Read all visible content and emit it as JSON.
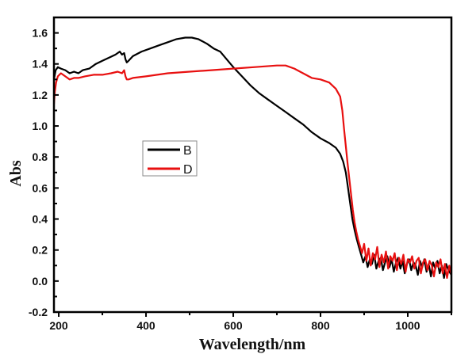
{
  "chart_data": {
    "type": "line",
    "title": "",
    "xlabel": "Wavelength/nm",
    "ylabel": "Abs",
    "xlim": [
      189,
      1100
    ],
    "ylim": [
      -0.2,
      1.7
    ],
    "x_ticks": [
      200,
      400,
      600,
      800,
      1000
    ],
    "x_tick_labels": [
      "200",
      "400",
      "600",
      "800",
      "1000"
    ],
    "x_minor_ticks": [
      300,
      500,
      700,
      900,
      1100
    ],
    "y_ticks": [
      -0.2,
      0.0,
      0.2,
      0.4,
      0.6,
      0.8,
      1.0,
      1.2,
      1.4,
      1.6
    ],
    "y_tick_labels": [
      "-0.2",
      "0.0",
      "0.2",
      "0.4",
      "0.6",
      "0.8",
      "1.0",
      "1.2",
      "1.4",
      "1.6"
    ],
    "y_minor_ticks": [
      -0.1,
      0.1,
      0.3,
      0.5,
      0.7,
      0.9,
      1.1,
      1.3,
      1.5,
      1.7
    ],
    "grid": false,
    "legend": {
      "placement": "center-left",
      "entries": [
        "B",
        "D"
      ]
    },
    "series": [
      {
        "name": "B",
        "color": "#000000",
        "x": [
          189,
          193,
          198,
          205,
          215,
          225,
          235,
          245,
          255,
          270,
          285,
          300,
          315,
          330,
          340,
          345,
          350,
          353,
          356,
          360,
          370,
          390,
          410,
          430,
          450,
          470,
          490,
          505,
          520,
          540,
          555,
          570,
          585,
          600,
          620,
          640,
          660,
          680,
          700,
          720,
          740,
          760,
          780,
          800,
          820,
          835,
          845,
          852,
          858,
          863,
          868,
          873,
          878,
          883,
          888,
          893,
          898,
          903,
          908,
          913,
          918,
          923,
          928,
          933,
          938,
          943,
          948,
          953,
          958,
          963,
          968,
          973,
          978,
          983,
          988,
          993,
          998,
          1003,
          1008,
          1013,
          1018,
          1023,
          1028,
          1033,
          1038,
          1043,
          1048,
          1053,
          1058,
          1063,
          1068,
          1073,
          1078,
          1083,
          1088,
          1093,
          1100
        ],
        "y": [
          1.3,
          1.36,
          1.38,
          1.37,
          1.36,
          1.34,
          1.35,
          1.34,
          1.36,
          1.37,
          1.4,
          1.42,
          1.44,
          1.46,
          1.48,
          1.46,
          1.47,
          1.43,
          1.41,
          1.42,
          1.45,
          1.48,
          1.5,
          1.52,
          1.54,
          1.56,
          1.57,
          1.57,
          1.56,
          1.53,
          1.5,
          1.48,
          1.43,
          1.38,
          1.32,
          1.26,
          1.21,
          1.17,
          1.13,
          1.09,
          1.05,
          1.01,
          0.96,
          0.92,
          0.89,
          0.86,
          0.82,
          0.77,
          0.7,
          0.6,
          0.5,
          0.4,
          0.33,
          0.27,
          0.22,
          0.17,
          0.12,
          0.16,
          0.09,
          0.14,
          0.11,
          0.17,
          0.08,
          0.13,
          0.15,
          0.07,
          0.12,
          0.16,
          0.09,
          0.14,
          0.06,
          0.12,
          0.15,
          0.08,
          0.13,
          0.05,
          0.11,
          0.14,
          0.07,
          0.12,
          0.1,
          0.04,
          0.13,
          0.09,
          0.14,
          0.06,
          0.11,
          0.03,
          0.12,
          0.08,
          0.13,
          0.05,
          0.1,
          0.02,
          0.11,
          0.07,
          0.04
        ]
      },
      {
        "name": "D",
        "color": "#e81010",
        "x": [
          189,
          191,
          194,
          198,
          205,
          215,
          225,
          235,
          245,
          260,
          280,
          300,
          320,
          335,
          345,
          350,
          353,
          356,
          360,
          370,
          400,
          450,
          500,
          550,
          600,
          650,
          700,
          720,
          740,
          760,
          780,
          800,
          820,
          835,
          845,
          850,
          854,
          858,
          862,
          866,
          870,
          874,
          878,
          882,
          886,
          890,
          895,
          900,
          905,
          910,
          915,
          920,
          925,
          930,
          935,
          940,
          945,
          950,
          955,
          960,
          965,
          970,
          975,
          980,
          985,
          990,
          995,
          1000,
          1005,
          1010,
          1015,
          1020,
          1025,
          1030,
          1035,
          1040,
          1045,
          1050,
          1055,
          1060,
          1065,
          1070,
          1075,
          1080,
          1085,
          1090,
          1095,
          1100
        ],
        "y": [
          1.14,
          1.22,
          1.28,
          1.32,
          1.34,
          1.32,
          1.3,
          1.31,
          1.31,
          1.32,
          1.33,
          1.33,
          1.34,
          1.35,
          1.34,
          1.36,
          1.32,
          1.3,
          1.3,
          1.31,
          1.32,
          1.34,
          1.35,
          1.36,
          1.37,
          1.38,
          1.39,
          1.39,
          1.37,
          1.34,
          1.31,
          1.3,
          1.28,
          1.24,
          1.19,
          1.1,
          0.98,
          0.87,
          0.76,
          0.66,
          0.56,
          0.46,
          0.38,
          0.32,
          0.27,
          0.23,
          0.18,
          0.24,
          0.13,
          0.21,
          0.1,
          0.18,
          0.14,
          0.22,
          0.09,
          0.17,
          0.12,
          0.19,
          0.08,
          0.16,
          0.13,
          0.18,
          0.07,
          0.15,
          0.11,
          0.17,
          0.06,
          0.14,
          0.12,
          0.16,
          0.08,
          0.13,
          0.15,
          0.05,
          0.12,
          0.14,
          0.07,
          0.13,
          0.1,
          0.03,
          0.12,
          0.09,
          0.14,
          0.05,
          0.11,
          0.02,
          0.1,
          0.04
        ]
      }
    ]
  }
}
